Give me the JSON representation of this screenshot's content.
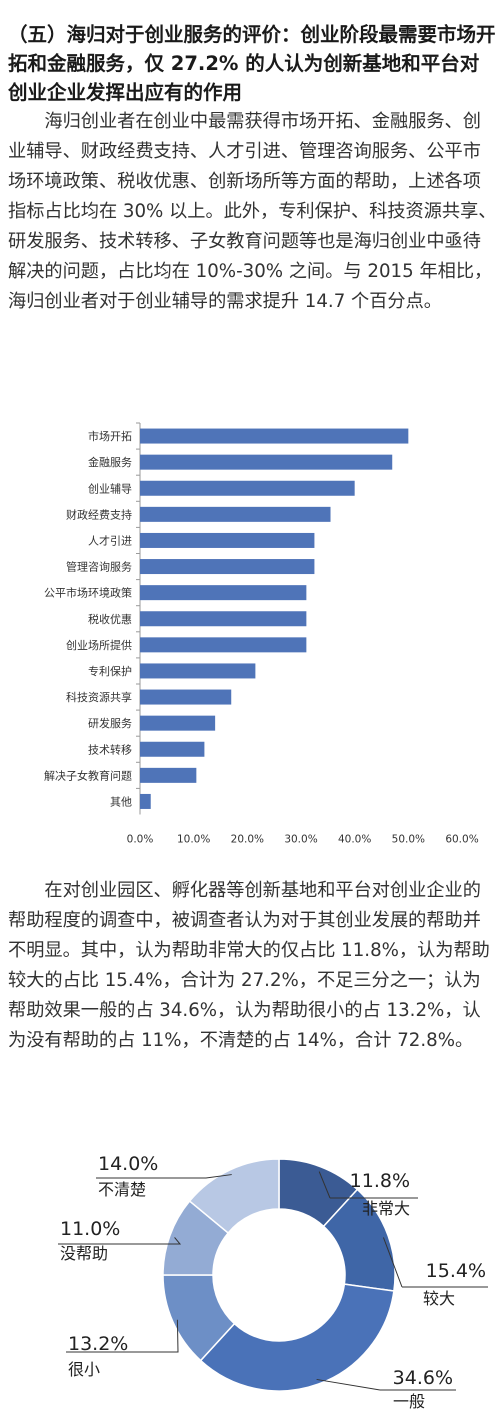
{
  "section": {
    "heading": "（五）海归对于创业服务的评价：创业阶段最需要市场开拓和金融服务，仅 27.2% 的人认为创新基地和平台对创业企业发挥出应有的作用",
    "paragraph1": "海归创业者在创业中最需获得市场开拓、金融服务、创业辅导、财政经费支持、人才引进、管理咨询服务、公平市场环境政策、税收优惠、创新场所等方面的帮助，上述各项指标占比均在 30% 以上。此外，专利保护、科技资源共享、研发服务、技术转移、子女教育问题等也是海归创业中亟待解决的问题，占比均在 10%-30% 之间。与 2015 年相比，海归创业者对于创业辅导的需求提升 14.7 个百分点。",
    "paragraph2": "在对创业园区、孵化器等创新基地和平台对创业企业的帮助程度的调查中，被调查者认为对于其创业发展的帮助并不明显。其中，认为帮助非常大的仅占比 11.8%，认为帮助较大的占比 15.4%，合计为 27.2%，不足三分之一；认为帮助效果一般的占 34.6%，认为帮助很小的占 13.2%，认为没有帮助的占 11%，不清楚的占 14%，合计 72.8%。"
  },
  "chart_data": [
    {
      "type": "bar",
      "orientation": "horizontal",
      "categories": [
        "市场开拓",
        "金融服务",
        "创业辅导",
        "财政经费支持",
        "人才引进",
        "管理咨询服务",
        "公平市场环境政策",
        "税收优惠",
        "创业场所提供",
        "专利保护",
        "科技资源共享",
        "研发服务",
        "技术转移",
        "解决子女教育问题",
        "其他"
      ],
      "values": [
        50.0,
        47.0,
        40.0,
        35.5,
        32.5,
        32.5,
        31.0,
        31.0,
        31.0,
        21.5,
        17.0,
        14.0,
        12.0,
        10.5,
        2.0
      ],
      "xlim": [
        0,
        60
      ],
      "xticks": [
        "0.0%",
        "10.0%",
        "20.0%",
        "30.0%",
        "40.0%",
        "50.0%",
        "60.0%"
      ],
      "bar_color": "#4f74b8"
    },
    {
      "type": "pie",
      "style": "donut",
      "slices": [
        {
          "label": "非常大",
          "value": 11.8,
          "value_label": "11.8%",
          "color": "#3b5b94"
        },
        {
          "label": "较大",
          "value": 15.4,
          "value_label": "15.4%",
          "color": "#3f66a7"
        },
        {
          "label": "一般",
          "value": 34.6,
          "value_label": "34.6%",
          "color": "#4a72b8"
        },
        {
          "label": "很小",
          "value": 13.2,
          "value_label": "13.2%",
          "color": "#6d8fc6"
        },
        {
          "label": "没帮助",
          "value": 11.0,
          "value_label": "11.0%",
          "color": "#93abd4"
        },
        {
          "label": "不清楚",
          "value": 14.0,
          "value_label": "14.0%",
          "color": "#b8c8e4"
        }
      ]
    }
  ]
}
